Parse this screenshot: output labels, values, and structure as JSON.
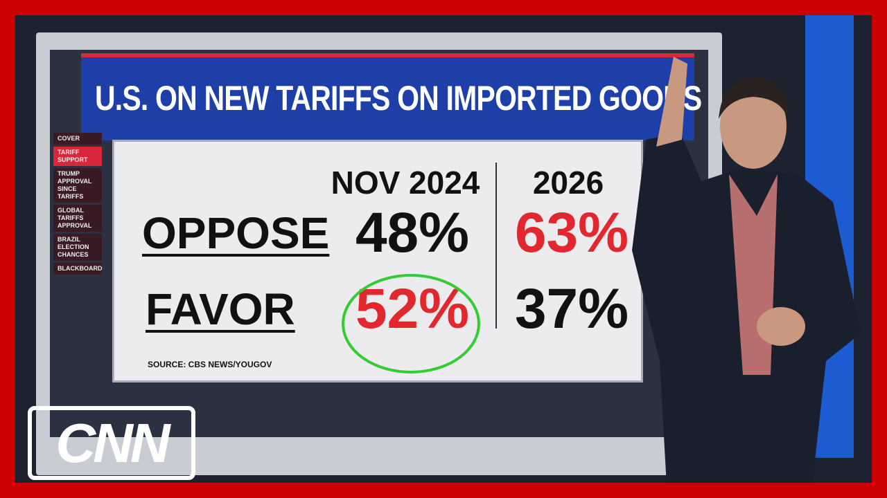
{
  "header": {
    "title": "U.S. ON NEW TARIFFS ON IMPORTED GOODS"
  },
  "nav": [
    "COVER",
    "TARIFF SUPPORT",
    "TRUMP APPROVAL SINCE TARIFFS",
    "GLOBAL TARIFFS APPROVAL",
    "BRAZIL ELECTION CHANCES",
    "BLACKBOARD"
  ],
  "table": {
    "columns": [
      "NOV 2024",
      "2026"
    ],
    "rows": [
      [
        "OPPOSE",
        "48%",
        "63%"
      ],
      [
        "FAVOR",
        "52%",
        "37%"
      ]
    ]
  },
  "source": "SOURCE: CBS NEWS/YOUGOV",
  "logo": "CNN"
}
